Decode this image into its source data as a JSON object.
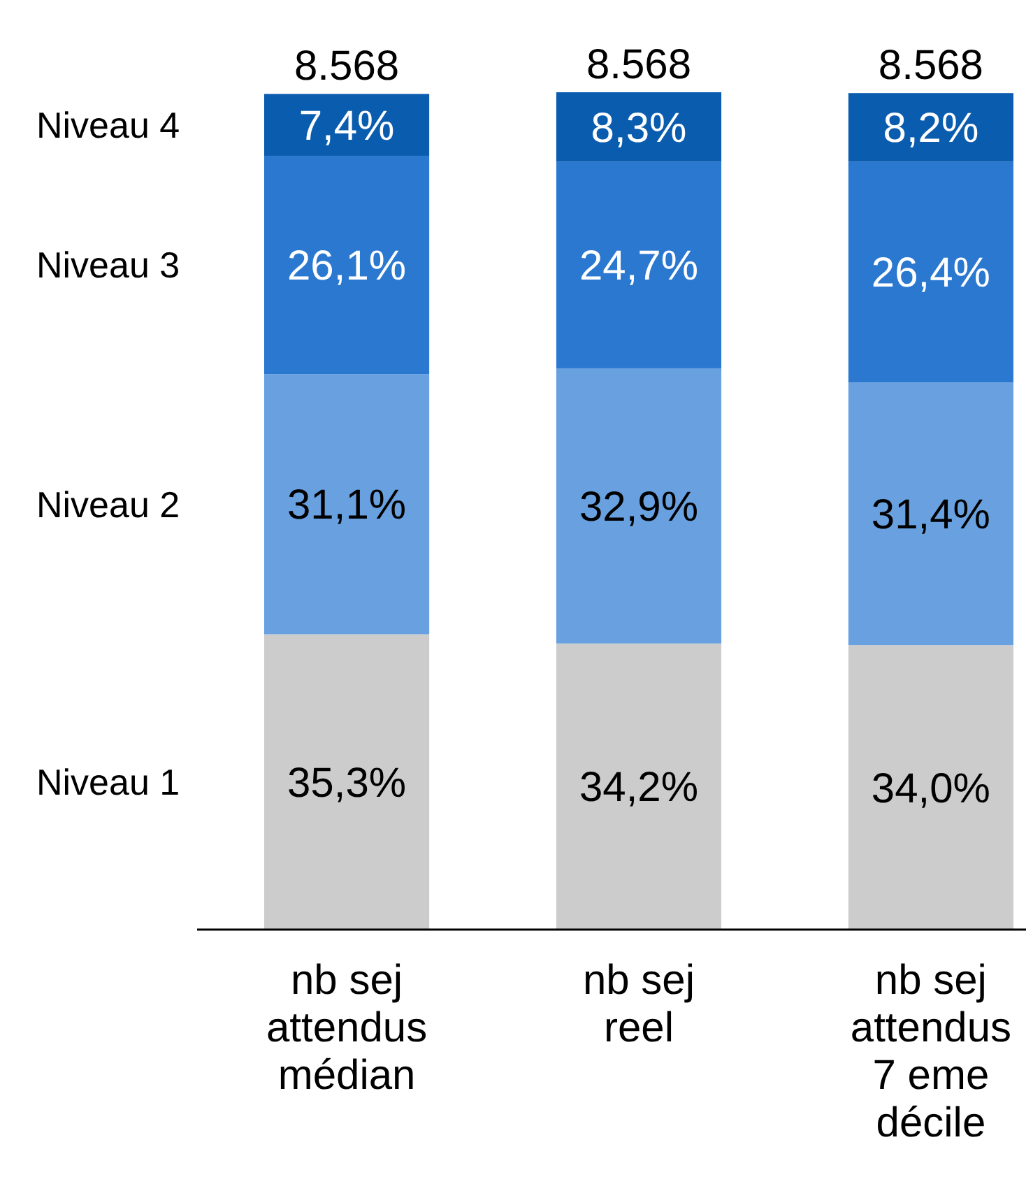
{
  "chart_data": {
    "type": "bar",
    "stacked": true,
    "categories": [
      "nb sej attendus médian",
      "nb sej reel",
      "nb sej attendus 7 eme décile"
    ],
    "series": [
      {
        "name": "Niveau 1",
        "color": "#cccccc",
        "values": [
          35.3,
          34.2,
          34.0
        ],
        "value_labels": [
          "35,3%",
          "34,2%",
          "34,0%"
        ]
      },
      {
        "name": "Niveau 2",
        "color": "#68a0e0",
        "values": [
          31.1,
          32.9,
          31.4
        ],
        "value_labels": [
          "31,1%",
          "32,9%",
          "31,4%"
        ]
      },
      {
        "name": "Niveau 3",
        "color": "#2a78d0",
        "values": [
          26.1,
          24.7,
          26.4
        ],
        "value_labels": [
          "26,1%",
          "24,7%",
          "26,4%"
        ]
      },
      {
        "name": "Niveau 4",
        "color": "#0a5caf",
        "values": [
          7.4,
          8.3,
          8.2
        ],
        "value_labels": [
          "7,4%",
          "8,3%",
          "8,2%"
        ]
      }
    ],
    "annotations": [
      "8.568",
      "8.568",
      "8.568"
    ]
  }
}
